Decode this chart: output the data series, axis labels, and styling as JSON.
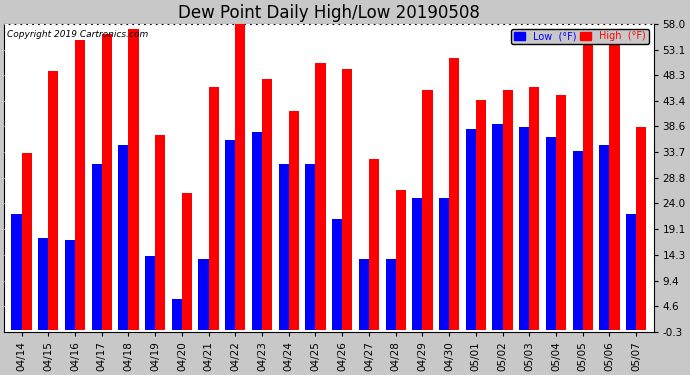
{
  "title": "Dew Point Daily High/Low 20190508",
  "copyright": "Copyright 2019 Cartronics.com",
  "dates": [
    "04/14",
    "04/15",
    "04/16",
    "04/17",
    "04/18",
    "04/19",
    "04/20",
    "04/21",
    "04/22",
    "04/23",
    "04/24",
    "04/25",
    "04/26",
    "04/27",
    "04/28",
    "04/29",
    "04/30",
    "05/01",
    "05/02",
    "05/03",
    "05/04",
    "05/05",
    "05/06",
    "05/07"
  ],
  "low_values": [
    22.0,
    17.5,
    17.0,
    31.5,
    35.0,
    14.0,
    6.0,
    13.5,
    36.0,
    37.5,
    31.5,
    31.5,
    21.0,
    13.5,
    13.5,
    25.0,
    25.0,
    38.0,
    39.0,
    38.5,
    36.5,
    34.0,
    35.0,
    22.0
  ],
  "high_values": [
    33.5,
    49.0,
    55.0,
    56.0,
    57.0,
    37.0,
    26.0,
    46.0,
    58.0,
    47.5,
    41.5,
    50.5,
    49.5,
    32.5,
    26.5,
    45.5,
    51.5,
    43.5,
    45.5,
    46.0,
    44.5,
    55.0,
    56.5,
    38.5
  ],
  "bar_color_low": "#0000ff",
  "bar_color_high": "#ff0000",
  "plot_bg_color": "#ffffff",
  "fig_bg_color": "#c8c8c8",
  "grid_color": "#ffffff",
  "ytick_labels": [
    "-0.3",
    "4.6",
    "9.4",
    "14.3",
    "19.1",
    "24.0",
    "28.8",
    "33.7",
    "38.6",
    "43.4",
    "48.3",
    "53.1",
    "58.0"
  ],
  "ytick_values": [
    -0.3,
    4.6,
    9.4,
    14.3,
    19.1,
    24.0,
    28.8,
    33.7,
    38.6,
    43.4,
    48.3,
    53.1,
    58.0
  ],
  "ymin": -0.3,
  "ymax": 58.0,
  "title_fontsize": 12,
  "tick_fontsize": 7.5,
  "legend_low_label": "Low  (°F)",
  "legend_high_label": "High  (°F)"
}
